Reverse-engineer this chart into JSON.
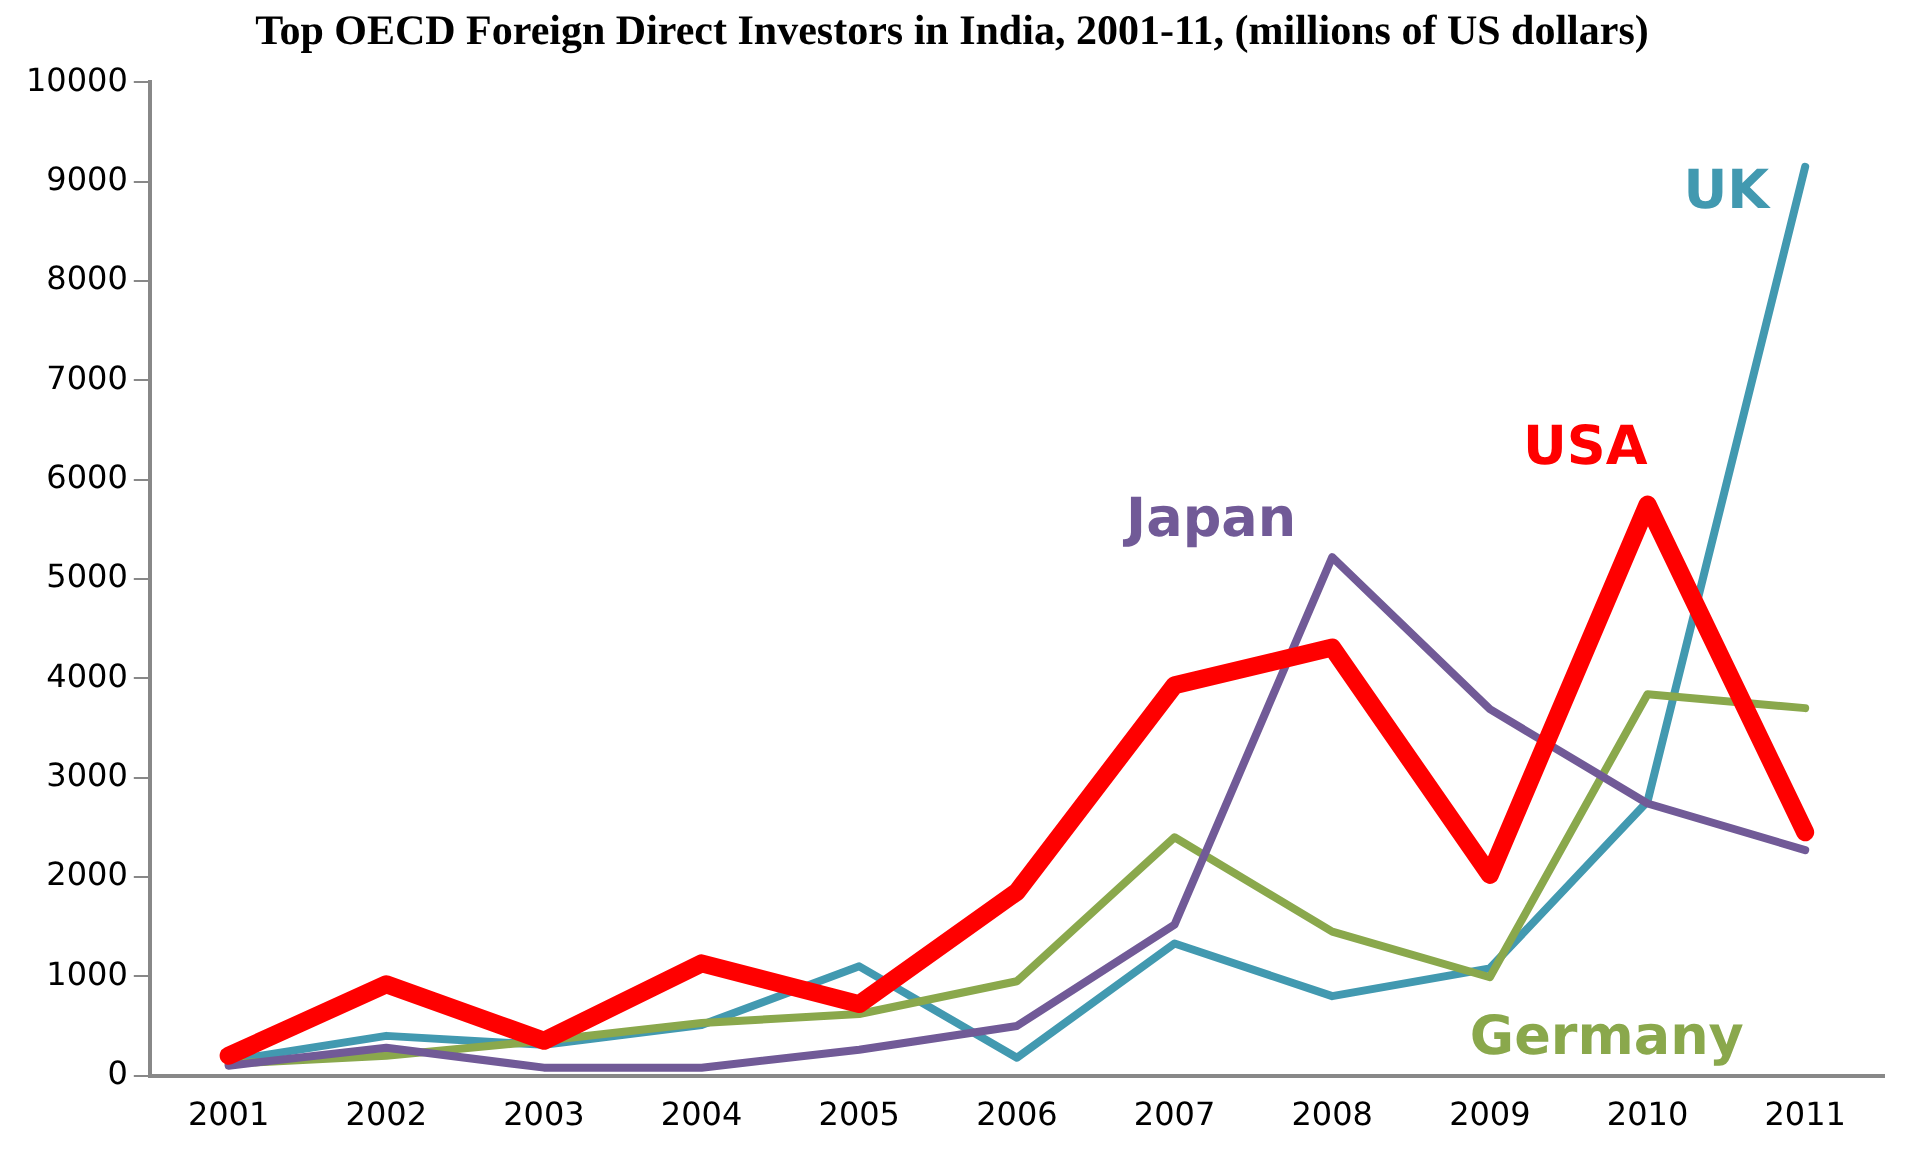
{
  "chart_data": {
    "type": "line",
    "title": "Top OECD Foreign Direct Investors in India, 2001-11, (millions of US dollars)",
    "categories": [
      "2001",
      "2002",
      "2003",
      "2004",
      "2005",
      "2006",
      "2007",
      "2008",
      "2009",
      "2010",
      "2011"
    ],
    "series": [
      {
        "name": "UK",
        "color": "#4299b0",
        "values": [
          150,
          400,
          310,
          510,
          1100,
          180,
          1330,
          800,
          1080,
          2760,
          9150
        ]
      },
      {
        "name": "Germany",
        "color": "#8aa84c",
        "values": [
          120,
          200,
          350,
          530,
          620,
          950,
          2400,
          1450,
          990,
          3840,
          3700
        ]
      },
      {
        "name": "Japan",
        "color": "#715a97",
        "values": [
          100,
          280,
          80,
          80,
          260,
          500,
          1520,
          5220,
          3690,
          2740,
          2270
        ]
      },
      {
        "name": "USA",
        "color": "#ff0000",
        "values": [
          200,
          920,
          350,
          1130,
          720,
          1850,
          3930,
          4310,
          2020,
          5750,
          2450
        ]
      }
    ],
    "ylim": [
      0,
      10000
    ],
    "yticks": [
      0,
      1000,
      2000,
      3000,
      4000,
      5000,
      6000,
      7000,
      8000,
      9000,
      10000
    ],
    "grid": false,
    "legend": false,
    "marker": "none",
    "line_style": "solid"
  }
}
